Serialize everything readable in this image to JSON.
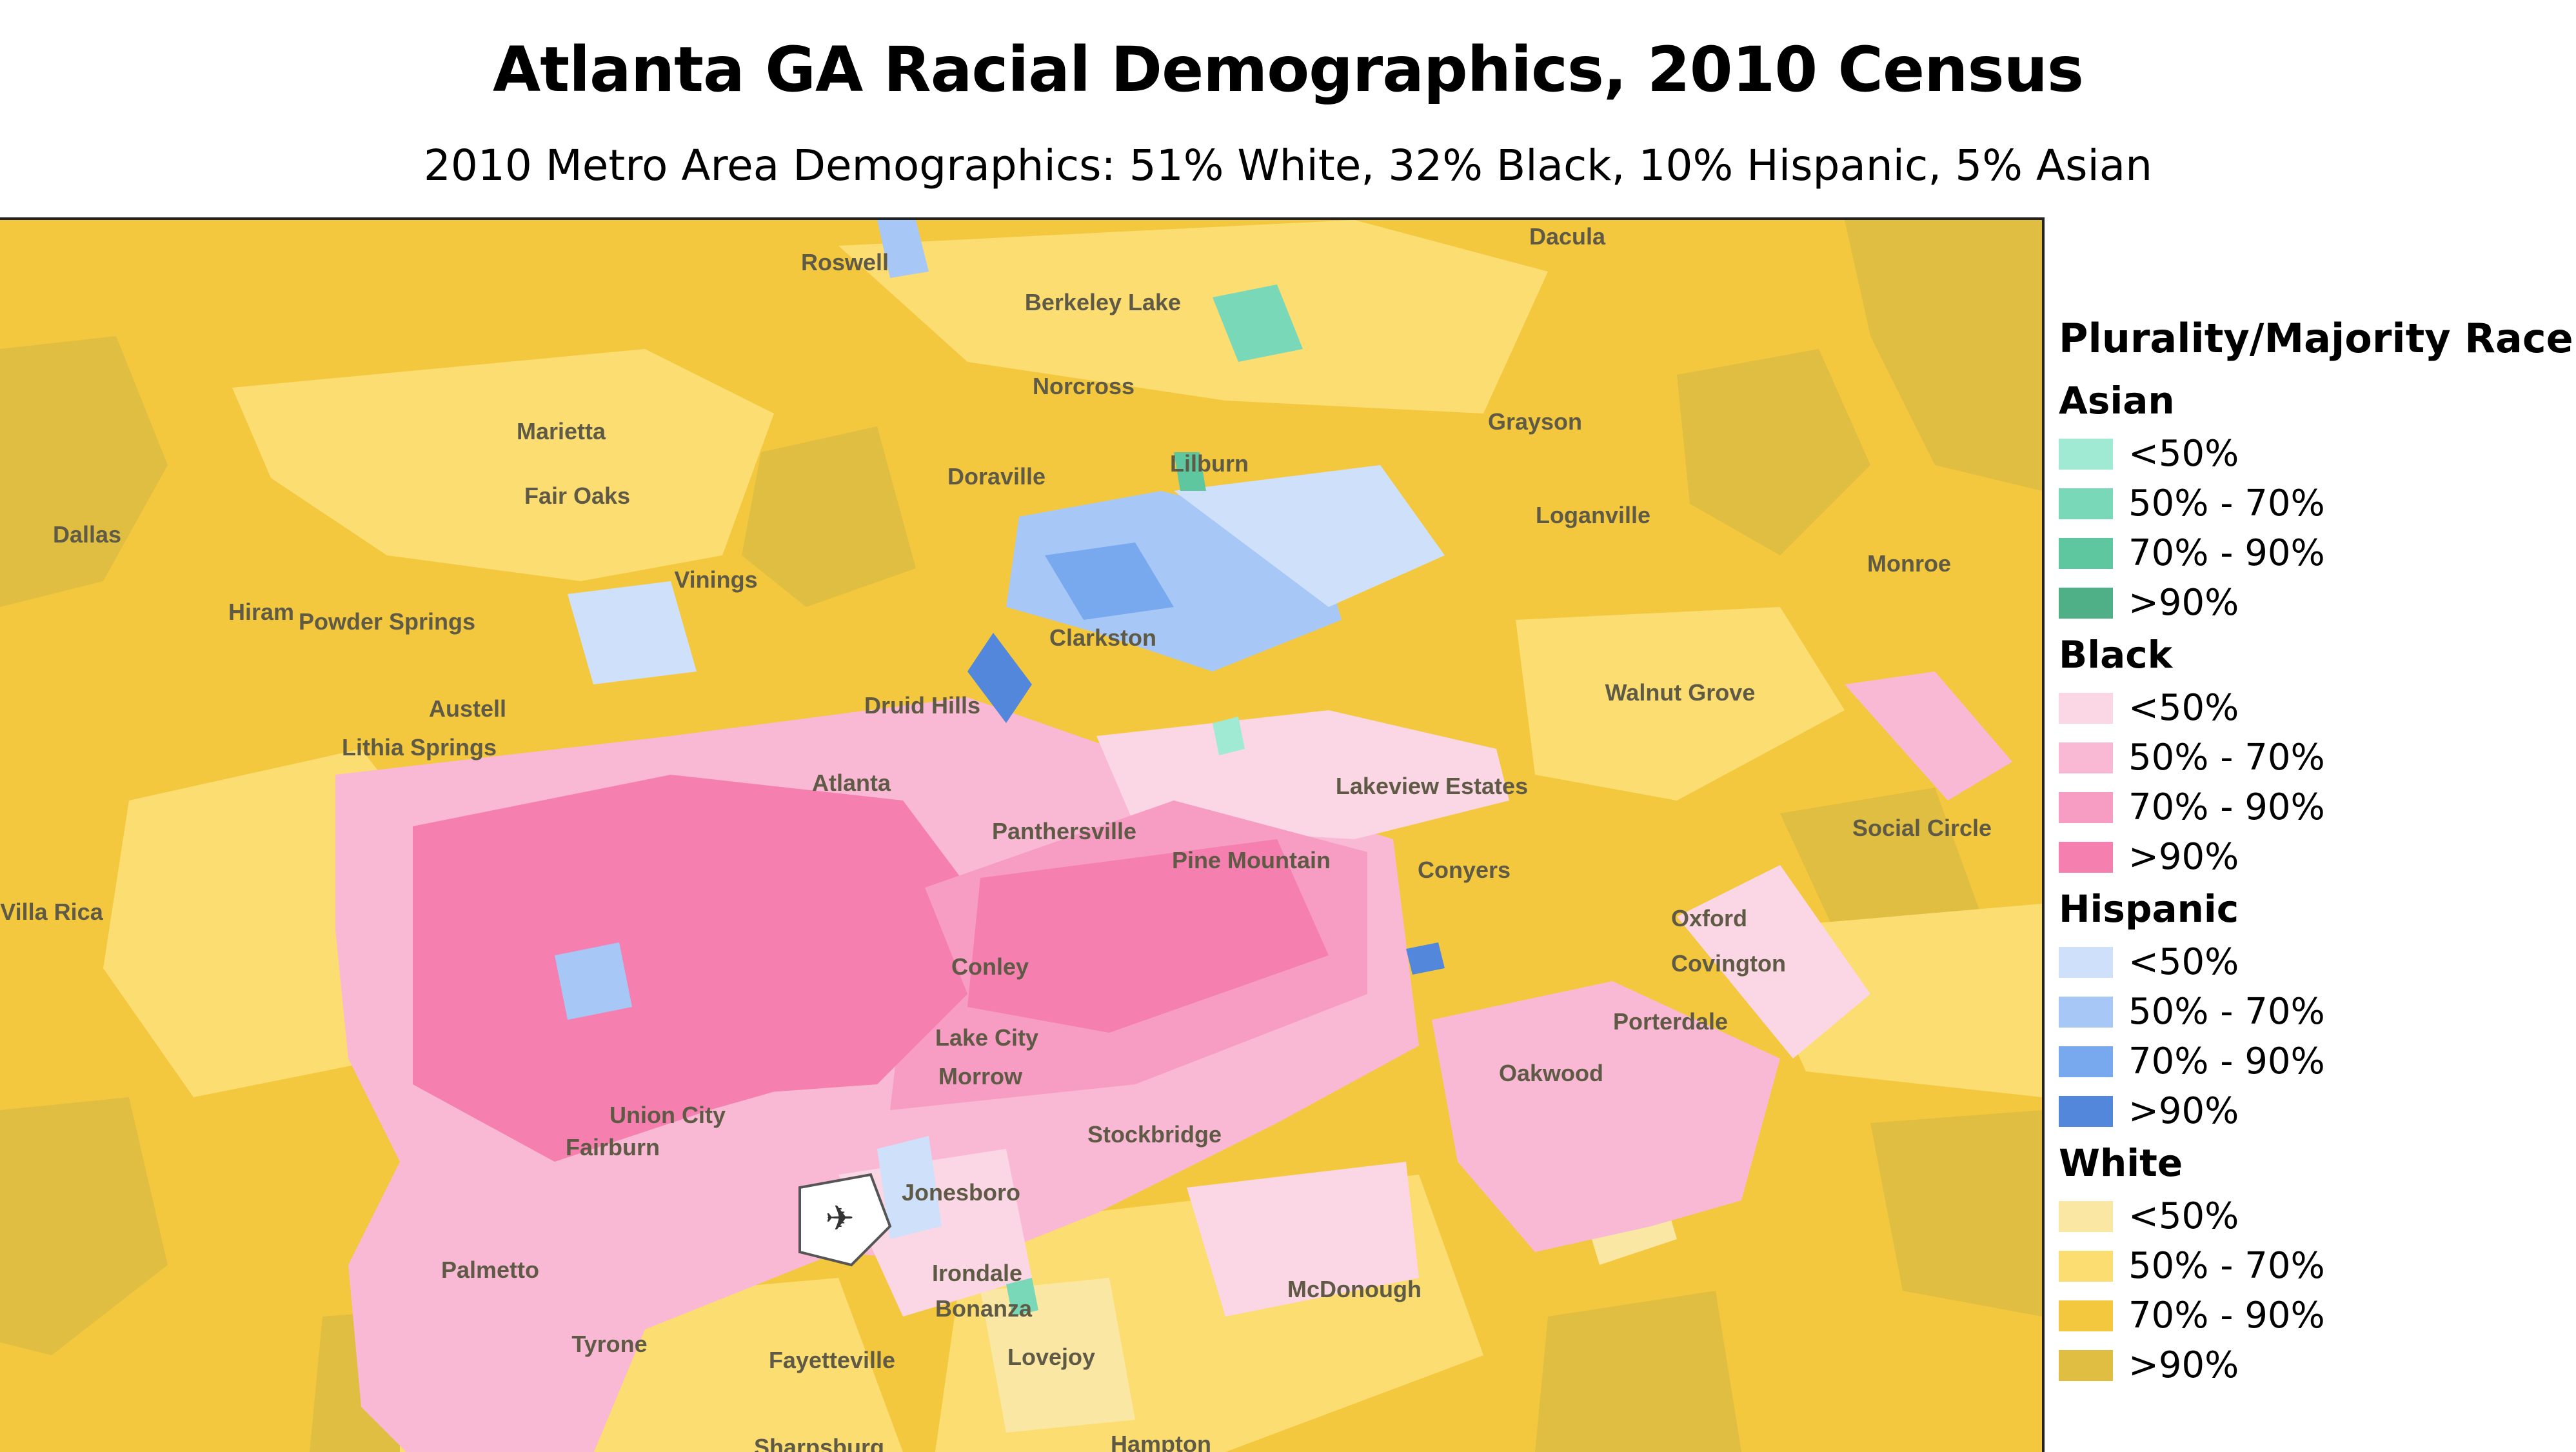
{
  "title": "Atlanta GA Racial Demographics, 2010 Census",
  "subtitle": "2010 Metro Area Demographics: 51% White, 32% Black, 10% Hispanic, 5% Asian",
  "legend": {
    "title": "Plurality/Majority Race",
    "groups": [
      {
        "name": "Asian",
        "items": [
          {
            "label": "<50%",
            "color": "#a0ead4"
          },
          {
            "label": "50% - 70%",
            "color": "#78d8b8"
          },
          {
            "label": "70% - 90%",
            "color": "#5fc7a0"
          },
          {
            "label": ">90%",
            "color": "#4faf86"
          }
        ]
      },
      {
        "name": "Black",
        "items": [
          {
            "label": "<50%",
            "color": "#fbd6e4"
          },
          {
            "label": "50% - 70%",
            "color": "#f9b8d3"
          },
          {
            "label": "70% - 90%",
            "color": "#f79cc2"
          },
          {
            "label": ">90%",
            "color": "#f57fae"
          }
        ]
      },
      {
        "name": "Hispanic",
        "items": [
          {
            "label": "<50%",
            "color": "#cfe0fb"
          },
          {
            "label": "50% - 70%",
            "color": "#a7c8f6"
          },
          {
            "label": "70% - 90%",
            "color": "#78a8ee"
          },
          {
            "label": ">90%",
            "color": "#5287dc"
          }
        ]
      },
      {
        "name": "White",
        "items": [
          {
            "label": "<50%",
            "color": "#fbe7a4"
          },
          {
            "label": "50% - 70%",
            "color": "#fbdd72"
          },
          {
            "label": "70% - 90%",
            "color": "#f3c83e"
          },
          {
            "label": ">90%",
            "color": "#e0be42"
          }
        ]
      }
    ]
  },
  "map": {
    "places": [
      "Roswell",
      "Dacula",
      "Berkeley Lake",
      "Norcross",
      "Marietta",
      "Grayson",
      "Fair Oaks",
      "Doraville",
      "Lilburn",
      "Loganville",
      "Dallas",
      "Monroe",
      "Hiram",
      "Powder Springs",
      "Vinings",
      "Clarkston",
      "Walnut Grove",
      "Austell",
      "Druid Hills",
      "Lithia Springs",
      "Atlanta",
      "Lakeview Estates",
      "Social Circle",
      "Panthersville",
      "Pine Mountain",
      "Conyers",
      "Villa Rica",
      "Oxford",
      "Covington",
      "Conley",
      "Porterdale",
      "Lake City",
      "Morrow",
      "Oakwood",
      "Union City",
      "Stockbridge",
      "Fairburn",
      "Jonesboro",
      "Palmetto",
      "Irondale",
      "Bonanza",
      "McDonough",
      "Tyrone",
      "Fayetteville",
      "Lovejoy",
      "Sharpsburg",
      "Hampton"
    ]
  }
}
